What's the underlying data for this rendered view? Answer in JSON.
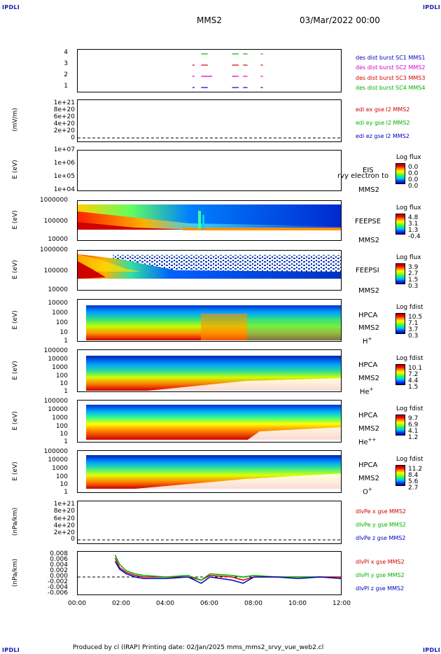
{
  "corners": {
    "tl": "IPDLI",
    "tr": "IPDLI",
    "bl": "IPDLI",
    "br": "IPDLI"
  },
  "header": {
    "spacecraft": "MMS2",
    "datetime": "03/Mar/2022 00:00"
  },
  "footer": {
    "text": "Produced by cl (IRAP)   Printing date: 02/Jan/2025   mms_mms2_srvy_vue_web2.cl"
  },
  "x_axis": {
    "ticks": [
      "00:00",
      "02:00",
      "04:00",
      "06:00",
      "08:00",
      "10:00",
      "12:00"
    ]
  },
  "panels": {
    "burst": {
      "ticks": [
        "4",
        "3",
        "2",
        "1"
      ],
      "legend": [
        {
          "text": "des dist burst SC1 MMS1",
          "color": "#0000c0"
        },
        {
          "text": "des dist burst SC2 MMS2",
          "color": "#d000d0"
        },
        {
          "text": "des dist burst SC3 MMS3",
          "color": "#d00000"
        },
        {
          "text": "des dist burst SC4 MMS4",
          "color": "#00b000"
        }
      ]
    },
    "edi": {
      "ylabel": "(mV/m)",
      "ticks": [
        "1e+21",
        "8e+20",
        "6e+20",
        "4e+20",
        "2e+20",
        "0"
      ],
      "legend": [
        {
          "text": "edi ex gse l2 MMS2",
          "color": "#d00000"
        },
        {
          "text": "edi ey gse l2 MMS2",
          "color": "#00b000"
        },
        {
          "text": "edi ez gse l2 MMS2",
          "color": "#0000c0"
        }
      ]
    },
    "eis": {
      "ylabel": "E (eV)",
      "ticks": [
        "1e+07",
        "1e+06",
        "1e+05",
        "1e+04"
      ],
      "label1": "EIS",
      "label2": "MMS2",
      "overlay": "rvy electron to",
      "cb_title": "Log flux",
      "cb_values": [
        "0.0",
        "0.0",
        "0.0",
        "0.0"
      ]
    },
    "feepse": {
      "ylabel": "E (eV)",
      "ticks": [
        "1000000",
        "100000",
        "10000"
      ],
      "label1": "FEEPSE",
      "label2": "MMS2",
      "cb_title": "Log flux",
      "cb_values": [
        "4.8",
        "3.1",
        "1.3",
        "-0.4"
      ]
    },
    "feepsi": {
      "ylabel": "E (eV)",
      "ticks": [
        "1000000",
        "100000",
        "10000"
      ],
      "label1": "FEEPSI",
      "label2": "MMS2",
      "cb_title": "Log flux",
      "cb_values": [
        "3.9",
        "2.7",
        "1.5",
        "0.3"
      ]
    },
    "hpca_h": {
      "ylabel": "E (eV)",
      "ticks": [
        "10000",
        "1000",
        "100",
        "10",
        "1"
      ],
      "label1": "HPCA",
      "label2": "MMS2",
      "species": "H",
      "charge": "+",
      "cb_title": "Log fdist",
      "cb_values": [
        "10.5",
        "7.1",
        "3.7",
        "0.3"
      ]
    },
    "hpca_he1": {
      "ylabel": "E (eV)",
      "ticks": [
        "100000",
        "10000",
        "1000",
        "100",
        "10",
        "1"
      ],
      "label1": "HPCA",
      "label2": "MMS2",
      "species": "He",
      "charge": "+",
      "cb_title": "Log fdist",
      "cb_values": [
        "10.1",
        "7.2",
        "4.4",
        "1.5"
      ]
    },
    "hpca_he2": {
      "ylabel": "E (eV)",
      "ticks": [
        "100000",
        "10000",
        "1000",
        "100",
        "10",
        "1"
      ],
      "label1": "HPCA",
      "label2": "MMS2",
      "species": "He",
      "charge": "++",
      "cb_title": "Log fdist",
      "cb_values": [
        "9.7",
        "6.9",
        "4.1",
        "1.2"
      ]
    },
    "hpca_o": {
      "ylabel": "E (eV)",
      "ticks": [
        "100000",
        "10000",
        "1000",
        "100",
        "10",
        "1"
      ],
      "label1": "HPCA",
      "label2": "MMS2",
      "species": "O",
      "charge": "+",
      "cb_title": "Log fdist",
      "cb_values": [
        "11.2",
        "8.4",
        "5.6",
        "2.7"
      ]
    },
    "dlvpe": {
      "ylabel": "(nPa/km)",
      "ticks": [
        "1e+21",
        "8e+20",
        "6e+20",
        "4e+20",
        "2e+20",
        "0"
      ],
      "legend": [
        {
          "text": "dlvPe x gse MMS2",
          "color": "#d00000"
        },
        {
          "text": "dlvPe y gse MMS2",
          "color": "#00b000"
        },
        {
          "text": "dlvPe z gse MMS2",
          "color": "#0000c0"
        }
      ]
    },
    "dlvpi": {
      "ylabel": "(nPa/km)",
      "ticks": [
        "0.008",
        "0.006",
        "0.004",
        "0.002",
        "0.000",
        "-0.002",
        "-0.004",
        "-0.006"
      ],
      "legend": [
        {
          "text": "dlvPI x gse MMS2",
          "color": "#d00000"
        },
        {
          "text": "dlvPI y gse MMS2",
          "color": "#00b000"
        },
        {
          "text": "dlvPI z gse MMS2",
          "color": "#0000c0"
        }
      ]
    }
  },
  "chart_data": {
    "type": "line",
    "title": "MMS2 03/Mar/2022 00:00",
    "x_range": [
      "00:00",
      "12:00"
    ],
    "x_ticks": [
      "00:00",
      "02:00",
      "04:00",
      "06:00",
      "08:00",
      "10:00",
      "12:00"
    ],
    "burst_segments": [
      {
        "sc": 1,
        "hours": [
          [
            5.2,
            5.3
          ],
          [
            5.6,
            5.9
          ],
          [
            7.0,
            7.3
          ],
          [
            7.5,
            7.7
          ],
          [
            8.3,
            8.4
          ]
        ]
      },
      {
        "sc": 2,
        "hours": [
          [
            5.2,
            5.3
          ],
          [
            5.6,
            6.1
          ],
          [
            7.0,
            7.3
          ],
          [
            7.5,
            7.7
          ],
          [
            8.3,
            8.4
          ]
        ]
      },
      {
        "sc": 3,
        "hours": [
          [
            5.2,
            5.3
          ],
          [
            5.6,
            5.9
          ],
          [
            7.0,
            7.3
          ],
          [
            7.5,
            7.7
          ],
          [
            8.3,
            8.4
          ]
        ]
      },
      {
        "sc": 4,
        "hours": [
          [
            5.6,
            5.9
          ],
          [
            7.0,
            7.3
          ],
          [
            7.5,
            7.7
          ],
          [
            8.3,
            8.4
          ]
        ]
      }
    ],
    "dlvpi": {
      "ylim": [
        -0.006,
        0.008
      ],
      "x": [
        1.7,
        1.9,
        2.2,
        2.6,
        3.0,
        4.0,
        5.0,
        5.6,
        6.0,
        7.0,
        7.5,
        8.0,
        9.0,
        10.0,
        11.0,
        12.0
      ],
      "series": [
        {
          "name": "dlvPI x gse MMS2",
          "values": [
            0.006,
            0.003,
            0.0015,
            0.0005,
            0.0,
            0.0,
            0.0,
            -0.001,
            0.0005,
            0.0,
            -0.001,
            0.0,
            0.0,
            0.0,
            0.0,
            0.0
          ]
        },
        {
          "name": "dlvPI y gse MMS2",
          "values": [
            0.007,
            0.004,
            0.002,
            0.001,
            0.0005,
            0.0,
            0.0005,
            -0.001,
            0.001,
            0.0005,
            0.0,
            0.0005,
            0.0,
            0.0,
            0.0,
            -0.0005
          ]
        },
        {
          "name": "dlvPI z gse MMS2",
          "values": [
            0.005,
            0.0025,
            0.001,
            0.0,
            -0.0005,
            -0.0005,
            0.0,
            -0.002,
            0.0,
            -0.001,
            -0.002,
            0.0,
            0.0,
            -0.0005,
            0.0,
            -0.0005
          ]
        }
      ]
    }
  }
}
